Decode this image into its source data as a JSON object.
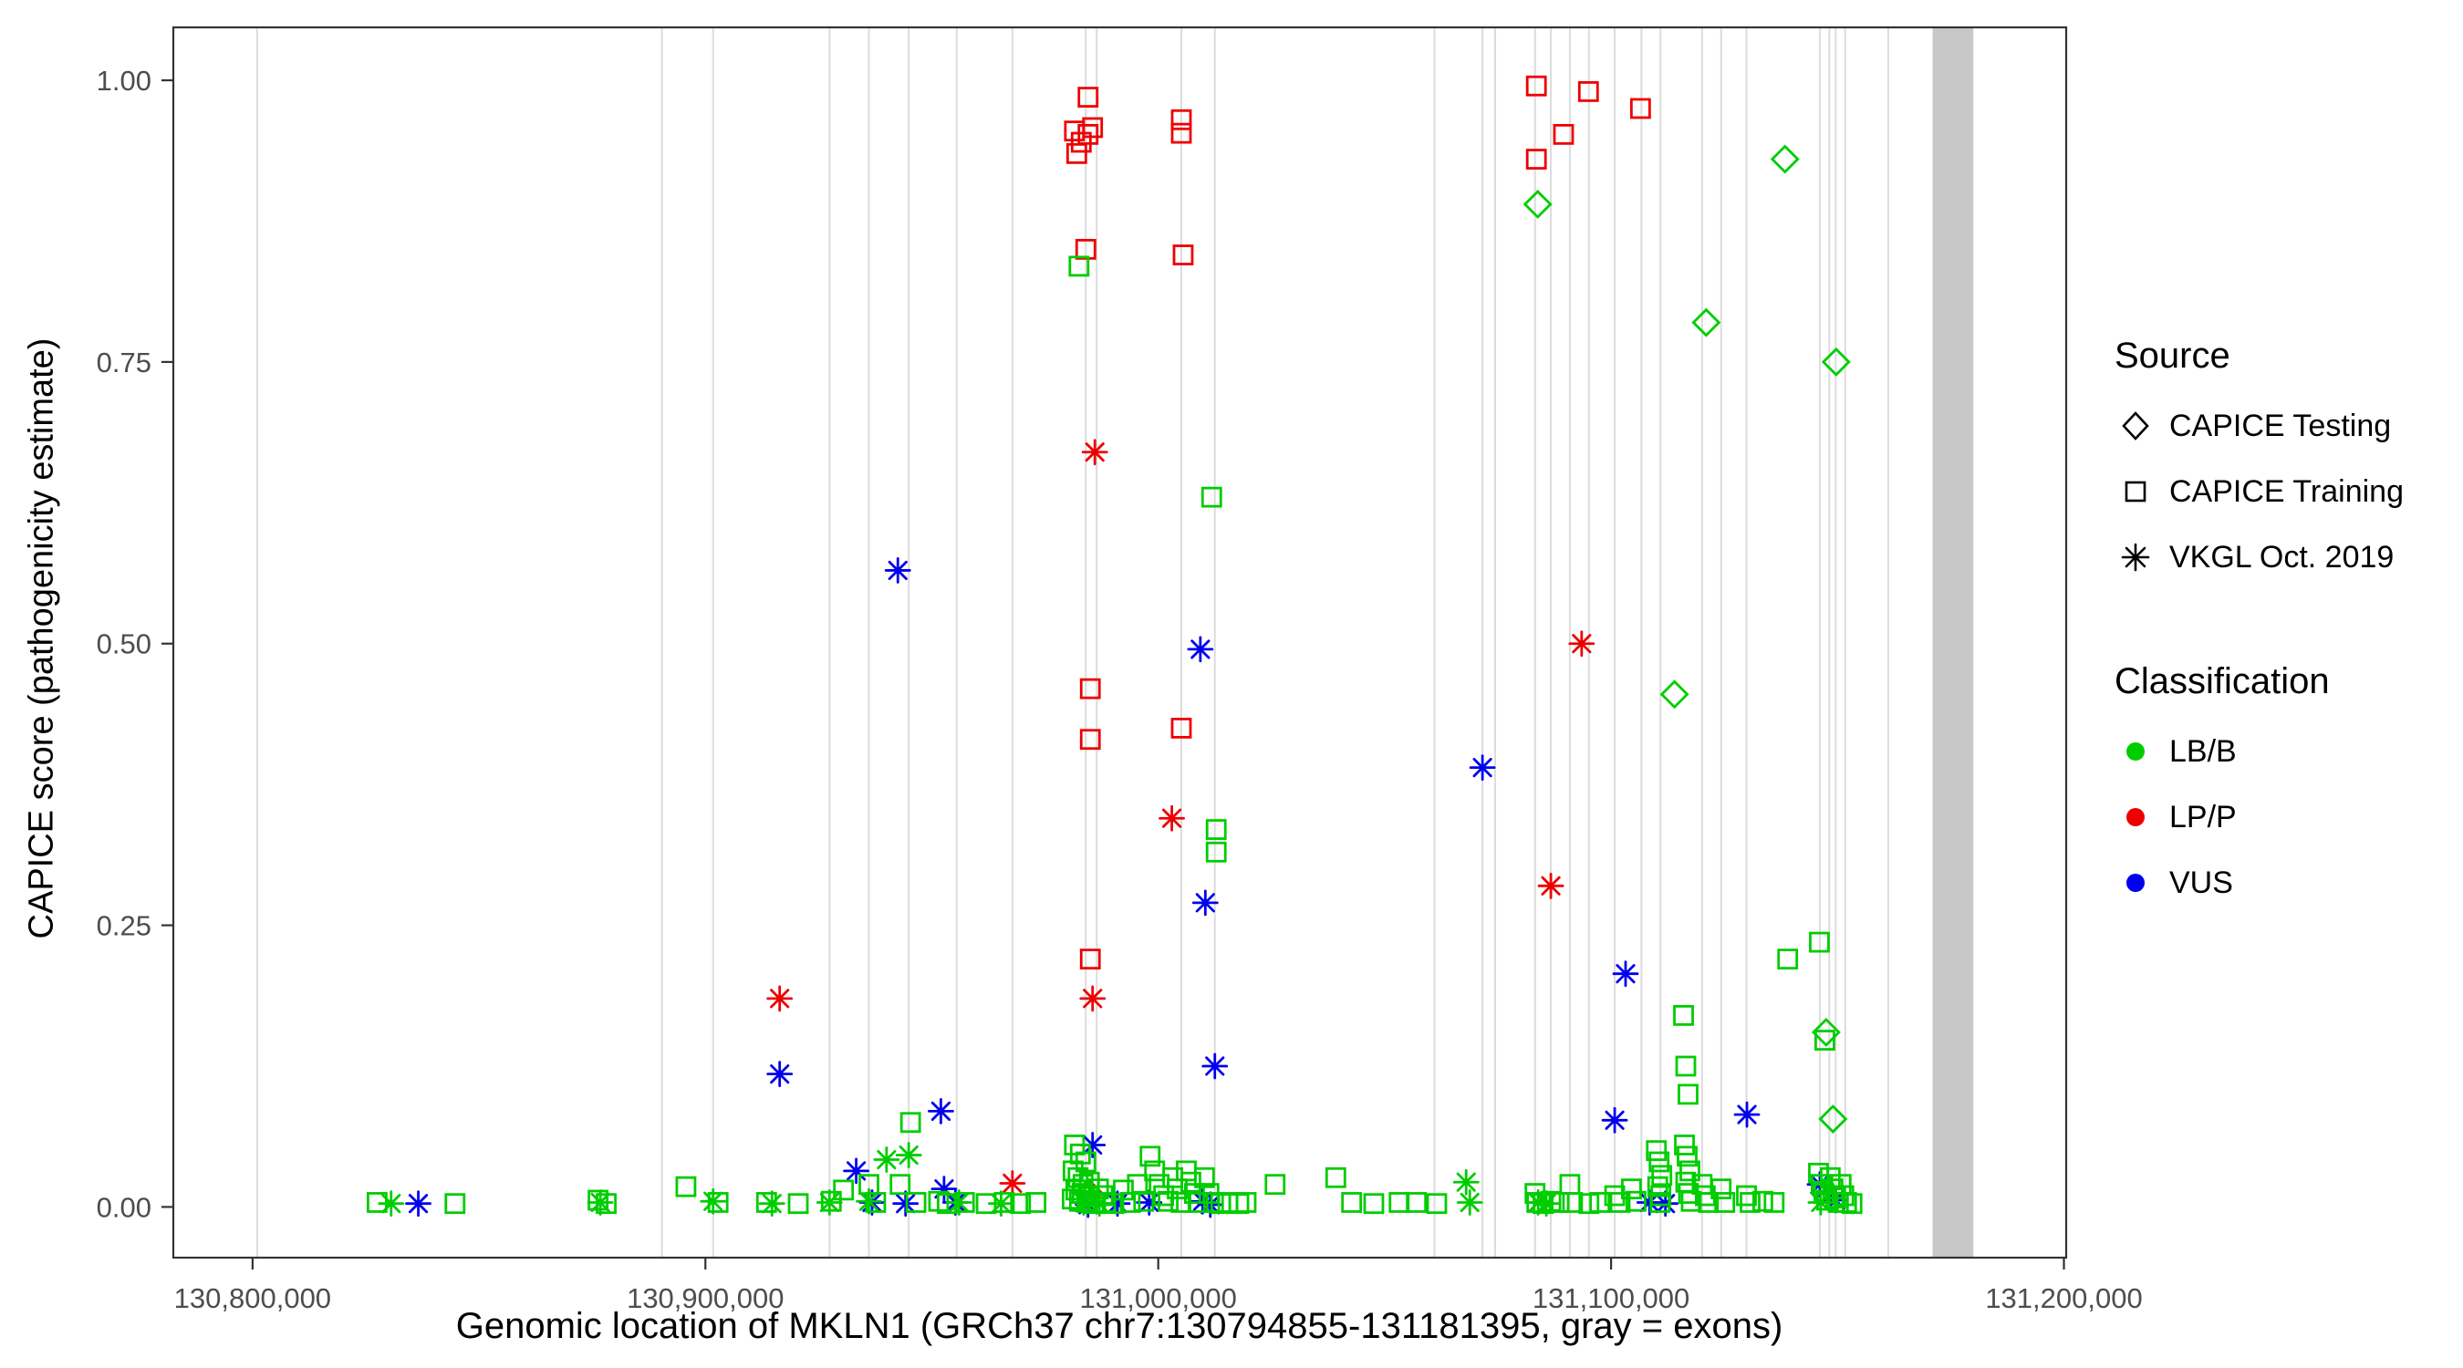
{
  "figure": {
    "y_axis_title": "CAPICE score (pathogenicity estimate)",
    "x_axis_title": "Genomic location of MKLN1 (GRCh37 chr7:130794855-131181395, gray = exons)"
  },
  "legend": {
    "source_title": "Source",
    "source_items": [
      {
        "label": "CAPICE Testing",
        "shape": "diamond"
      },
      {
        "label": "CAPICE Training",
        "shape": "square"
      },
      {
        "label": "VKGL Oct. 2019",
        "shape": "asterisk"
      }
    ],
    "classification_title": "Classification",
    "classification_items": [
      {
        "label": "LB/B",
        "color_key": "lbb"
      },
      {
        "label": "LP/P",
        "color_key": "lpp"
      },
      {
        "label": "VUS",
        "color_key": "vus"
      }
    ]
  },
  "chart_data": {
    "type": "scatter",
    "title": "",
    "xlabel": "Genomic location of MKLN1 (GRCh37 chr7:130794855-131181395, gray = exons)",
    "ylabel": "CAPICE score (pathogenicity estimate)",
    "xlim": [
      130782500,
      131200500
    ],
    "ylim": [
      -0.045,
      1.047
    ],
    "legend_position": "right",
    "grid": false,
    "x_ticks": [
      {
        "value": 130800000,
        "label": "130,800,000"
      },
      {
        "value": 130900000,
        "label": "130,900,000"
      },
      {
        "value": 131000000,
        "label": "131,000,000"
      },
      {
        "value": 131100000,
        "label": "131,100,000"
      },
      {
        "value": 131200000,
        "label": "131,200,000"
      }
    ],
    "y_ticks": [
      {
        "value": 0.0,
        "label": "0.00"
      },
      {
        "value": 0.25,
        "label": "0.25"
      },
      {
        "value": 0.5,
        "label": "0.50"
      },
      {
        "value": 0.75,
        "label": "0.75"
      },
      {
        "value": 1.0,
        "label": "1.00"
      }
    ],
    "colors": {
      "lbb": "#00CD00",
      "lpp": "#EE0000",
      "vus": "#0000EE"
    },
    "shapes": {
      "testing": "diamond",
      "training": "square",
      "vkgl": "asterisk"
    },
    "exon_color": "#DCDCDC",
    "exon_wide_color": "#C8C8C8",
    "exons": [
      130801000,
      130890400,
      130901700,
      130927400,
      130936100,
      130944900,
      130955500,
      130967800,
      130984000,
      130986400,
      131005100,
      131012500,
      131061000,
      131071600,
      131074400,
      131083200,
      131086700,
      131090900,
      131095100,
      131100800,
      131106700,
      131110900,
      131120100,
      131124300,
      131129900,
      131146100,
      131148200,
      131149600,
      131151700,
      131161200
    ],
    "exon_wide": [
      131171000,
      131180000
    ],
    "points": [
      [
        130984500,
        0.985,
        "training",
        "lpp"
      ],
      [
        130981500,
        0.955,
        "training",
        "lpp"
      ],
      [
        130983000,
        0.945,
        "training",
        "lpp"
      ],
      [
        130984500,
        0.952,
        "training",
        "lpp"
      ],
      [
        130982000,
        0.935,
        "training",
        "lpp"
      ],
      [
        130985500,
        0.958,
        "training",
        "lpp"
      ],
      [
        131005100,
        0.965,
        "training",
        "lpp"
      ],
      [
        131005100,
        0.953,
        "training",
        "lpp"
      ],
      [
        130984000,
        0.85,
        "training",
        "lpp"
      ],
      [
        131005500,
        0.845,
        "training",
        "lpp"
      ],
      [
        131083500,
        0.995,
        "training",
        "lpp"
      ],
      [
        131095000,
        0.99,
        "training",
        "lpp"
      ],
      [
        131083500,
        0.93,
        "training",
        "lpp"
      ],
      [
        131089500,
        0.952,
        "training",
        "lpp"
      ],
      [
        131106500,
        0.975,
        "training",
        "lpp"
      ],
      [
        130985000,
        0.46,
        "training",
        "lpp"
      ],
      [
        130985000,
        0.415,
        "training",
        "lpp"
      ],
      [
        131005100,
        0.425,
        "training",
        "lpp"
      ],
      [
        130985000,
        0.22,
        "training",
        "lpp"
      ],
      [
        130982500,
        0.835,
        "training",
        "lbb"
      ],
      [
        131011800,
        0.63,
        "training",
        "lbb"
      ],
      [
        131012800,
        0.335,
        "training",
        "lbb"
      ],
      [
        131012800,
        0.315,
        "training",
        "lbb"
      ],
      [
        130986000,
        0.67,
        "vkgl",
        "lpp"
      ],
      [
        131003000,
        0.345,
        "vkgl",
        "lpp"
      ],
      [
        130985500,
        0.185,
        "vkgl",
        "lpp"
      ],
      [
        130916400,
        0.185,
        "vkgl",
        "lpp"
      ],
      [
        131093500,
        0.5,
        "vkgl",
        "lpp"
      ],
      [
        131086700,
        0.285,
        "vkgl",
        "lpp"
      ],
      [
        130967800,
        0.021,
        "vkgl",
        "lpp"
      ],
      [
        130984800,
        0.012,
        "testing",
        "lpp"
      ],
      [
        130942500,
        0.565,
        "vkgl",
        "vus"
      ],
      [
        131009300,
        0.495,
        "vkgl",
        "vus"
      ],
      [
        131071600,
        0.39,
        "vkgl",
        "vus"
      ],
      [
        131010400,
        0.27,
        "vkgl",
        "vus"
      ],
      [
        130916400,
        0.118,
        "vkgl",
        "vus"
      ],
      [
        130952000,
        0.085,
        "vkgl",
        "vus"
      ],
      [
        131012500,
        0.125,
        "vkgl",
        "vus"
      ],
      [
        131103200,
        0.207,
        "vkgl",
        "vus"
      ],
      [
        131100800,
        0.077,
        "vkgl",
        "vus"
      ],
      [
        131130000,
        0.082,
        "vkgl",
        "vus"
      ],
      [
        130933300,
        0.032,
        "vkgl",
        "vus"
      ],
      [
        130985500,
        0.055,
        "vkgl",
        "vus"
      ],
      [
        130952700,
        0.016,
        "vkgl",
        "vus"
      ],
      [
        130836600,
        0.003,
        "vkgl",
        "vus"
      ],
      [
        130936800,
        0.004,
        "vkgl",
        "vus"
      ],
      [
        130944200,
        0.003,
        "vkgl",
        "vus"
      ],
      [
        130955200,
        0.004,
        "vkgl",
        "vus"
      ],
      [
        130984500,
        0.002,
        "vkgl",
        "vus"
      ],
      [
        130998000,
        0.004,
        "vkgl",
        "vus"
      ],
      [
        131009800,
        0.005,
        "vkgl",
        "vus"
      ],
      [
        131011500,
        0.002,
        "vkgl",
        "vus"
      ],
      [
        131108500,
        0.004,
        "vkgl",
        "vus"
      ],
      [
        131112000,
        0.003,
        "vkgl",
        "vus"
      ],
      [
        131146100,
        0.02,
        "vkgl",
        "vus"
      ],
      [
        131149600,
        0.006,
        "vkgl",
        "vus"
      ],
      [
        130991000,
        0.003,
        "vkgl",
        "vus"
      ],
      [
        131083800,
        0.89,
        "testing",
        "lbb"
      ],
      [
        131121000,
        0.785,
        "testing",
        "lbb"
      ],
      [
        131138400,
        0.93,
        "testing",
        "lbb"
      ],
      [
        131149700,
        0.75,
        "testing",
        "lbb"
      ],
      [
        131114000,
        0.455,
        "testing",
        "lbb"
      ],
      [
        131147500,
        0.155,
        "testing",
        "lbb"
      ],
      [
        131149000,
        0.078,
        "testing",
        "lbb"
      ],
      [
        130830600,
        0.003,
        "vkgl",
        "lbb"
      ],
      [
        130876800,
        0.004,
        "vkgl",
        "lbb"
      ],
      [
        130901700,
        0.005,
        "vkgl",
        "lbb"
      ],
      [
        130914700,
        0.003,
        "vkgl",
        "lbb"
      ],
      [
        130927400,
        0.004,
        "vkgl",
        "lbb"
      ],
      [
        130936100,
        0.005,
        "vkgl",
        "lbb"
      ],
      [
        130940000,
        0.042,
        "vkgl",
        "lbb"
      ],
      [
        130944900,
        0.046,
        "vkgl",
        "lbb"
      ],
      [
        130956000,
        0.004,
        "vkgl",
        "lbb"
      ],
      [
        130965300,
        0.003,
        "vkgl",
        "lbb"
      ],
      [
        131068000,
        0.022,
        "vkgl",
        "lbb"
      ],
      [
        131068800,
        0.004,
        "vkgl",
        "lbb"
      ],
      [
        131083900,
        0.004,
        "vkgl",
        "lbb"
      ],
      [
        131085700,
        0.003,
        "vkgl",
        "lbb"
      ],
      [
        131146300,
        0.004,
        "vkgl",
        "lbb"
      ],
      [
        130983500,
        0.004,
        "vkgl",
        "lbb"
      ],
      [
        130987000,
        0.003,
        "vkgl",
        "lbb"
      ],
      [
        130827500,
        0.004,
        "training",
        "lbb"
      ],
      [
        130844700,
        0.003,
        "training",
        "lbb"
      ],
      [
        130876300,
        0.006,
        "training",
        "lbb"
      ],
      [
        130878100,
        0.003,
        "training",
        "lbb"
      ],
      [
        130895700,
        0.018,
        "training",
        "lbb"
      ],
      [
        130902800,
        0.004,
        "training",
        "lbb"
      ],
      [
        130913500,
        0.004,
        "training",
        "lbb"
      ],
      [
        130920500,
        0.003,
        "training",
        "lbb"
      ],
      [
        130927800,
        0.005,
        "training",
        "lbb"
      ],
      [
        130930500,
        0.015,
        "training",
        "lbb"
      ],
      [
        130936100,
        0.02,
        "training",
        "lbb"
      ],
      [
        130937600,
        0.004,
        "training",
        "lbb"
      ],
      [
        130943000,
        0.02,
        "training",
        "lbb"
      ],
      [
        130945300,
        0.075,
        "training",
        "lbb"
      ],
      [
        130946500,
        0.004,
        "training",
        "lbb"
      ],
      [
        130951500,
        0.005,
        "training",
        "lbb"
      ],
      [
        130953400,
        0.003,
        "training",
        "lbb"
      ],
      [
        130957200,
        0.004,
        "training",
        "lbb"
      ],
      [
        130962000,
        0.003,
        "training",
        "lbb"
      ],
      [
        130966000,
        0.004,
        "training",
        "lbb"
      ],
      [
        130969600,
        0.003,
        "training",
        "lbb"
      ],
      [
        130973000,
        0.004,
        "training",
        "lbb"
      ],
      [
        130981500,
        0.055,
        "training",
        "lbb"
      ],
      [
        130982800,
        0.047,
        "training",
        "lbb"
      ],
      [
        130984000,
        0.04,
        "training",
        "lbb"
      ],
      [
        130981200,
        0.032,
        "training",
        "lbb"
      ],
      [
        130982300,
        0.026,
        "training",
        "lbb"
      ],
      [
        130983400,
        0.02,
        "training",
        "lbb"
      ],
      [
        130984800,
        0.022,
        "training",
        "lbb"
      ],
      [
        130981800,
        0.015,
        "training",
        "lbb"
      ],
      [
        130983200,
        0.012,
        "training",
        "lbb"
      ],
      [
        130984600,
        0.009,
        "training",
        "lbb"
      ],
      [
        130981000,
        0.007,
        "training",
        "lbb"
      ],
      [
        130982600,
        0.005,
        "training",
        "lbb"
      ],
      [
        130984200,
        0.004,
        "training",
        "lbb"
      ],
      [
        130985800,
        0.003,
        "training",
        "lbb"
      ],
      [
        130986800,
        0.016,
        "training",
        "lbb"
      ],
      [
        130987800,
        0.01,
        "training",
        "lbb"
      ],
      [
        130988400,
        0.004,
        "training",
        "lbb"
      ],
      [
        130990200,
        0.003,
        "training",
        "lbb"
      ],
      [
        130992300,
        0.015,
        "training",
        "lbb"
      ],
      [
        130993800,
        0.004,
        "training",
        "lbb"
      ],
      [
        130995400,
        0.02,
        "training",
        "lbb"
      ],
      [
        130996800,
        0.005,
        "training",
        "lbb"
      ],
      [
        130998200,
        0.045,
        "training",
        "lbb"
      ],
      [
        130999200,
        0.032,
        "training",
        "lbb"
      ],
      [
        131000200,
        0.02,
        "training",
        "lbb"
      ],
      [
        131001200,
        0.01,
        "training",
        "lbb"
      ],
      [
        131002200,
        0.005,
        "training",
        "lbb"
      ],
      [
        131003200,
        0.026,
        "training",
        "lbb"
      ],
      [
        131004200,
        0.016,
        "training",
        "lbb"
      ],
      [
        131005000,
        0.004,
        "training",
        "lbb"
      ],
      [
        131006200,
        0.032,
        "training",
        "lbb"
      ],
      [
        131007200,
        0.022,
        "training",
        "lbb"
      ],
      [
        131008000,
        0.012,
        "training",
        "lbb"
      ],
      [
        131008800,
        0.004,
        "training",
        "lbb"
      ],
      [
        131010200,
        0.026,
        "training",
        "lbb"
      ],
      [
        131011200,
        0.012,
        "training",
        "lbb"
      ],
      [
        131012200,
        0.004,
        "training",
        "lbb"
      ],
      [
        131013800,
        0.003,
        "training",
        "lbb"
      ],
      [
        131015400,
        0.004,
        "training",
        "lbb"
      ],
      [
        131017800,
        0.003,
        "training",
        "lbb"
      ],
      [
        131019400,
        0.004,
        "training",
        "lbb"
      ],
      [
        131025800,
        0.02,
        "training",
        "lbb"
      ],
      [
        131039200,
        0.026,
        "training",
        "lbb"
      ],
      [
        131042700,
        0.004,
        "training",
        "lbb"
      ],
      [
        131047600,
        0.003,
        "training",
        "lbb"
      ],
      [
        131053200,
        0.004,
        "training",
        "lbb"
      ],
      [
        131057000,
        0.004,
        "training",
        "lbb"
      ],
      [
        131061500,
        0.003,
        "training",
        "lbb"
      ],
      [
        131083200,
        0.012,
        "training",
        "lbb"
      ],
      [
        131083600,
        0.004,
        "training",
        "lbb"
      ],
      [
        131085000,
        0.003,
        "training",
        "lbb"
      ],
      [
        131086700,
        0.005,
        "training",
        "lbb"
      ],
      [
        131088500,
        0.004,
        "training",
        "lbb"
      ],
      [
        131090900,
        0.02,
        "training",
        "lbb"
      ],
      [
        131091500,
        0.004,
        "training",
        "lbb"
      ],
      [
        131095100,
        0.003,
        "training",
        "lbb"
      ],
      [
        131097500,
        0.004,
        "training",
        "lbb"
      ],
      [
        131100800,
        0.01,
        "training",
        "lbb"
      ],
      [
        131102000,
        0.004,
        "training",
        "lbb"
      ],
      [
        131104500,
        0.016,
        "training",
        "lbb"
      ],
      [
        131105500,
        0.005,
        "training",
        "lbb"
      ],
      [
        131110000,
        0.05,
        "training",
        "lbb"
      ],
      [
        131110600,
        0.04,
        "training",
        "lbb"
      ],
      [
        131111200,
        0.028,
        "training",
        "lbb"
      ],
      [
        131110300,
        0.018,
        "training",
        "lbb"
      ],
      [
        131111000,
        0.01,
        "training",
        "lbb"
      ],
      [
        131110800,
        0.004,
        "training",
        "lbb"
      ],
      [
        131116200,
        0.055,
        "training",
        "lbb"
      ],
      [
        131116800,
        0.045,
        "training",
        "lbb"
      ],
      [
        131117400,
        0.032,
        "training",
        "lbb"
      ],
      [
        131116500,
        0.022,
        "training",
        "lbb"
      ],
      [
        131117100,
        0.012,
        "training",
        "lbb"
      ],
      [
        131117700,
        0.005,
        "training",
        "lbb"
      ],
      [
        131116000,
        0.17,
        "training",
        "lbb"
      ],
      [
        131116500,
        0.125,
        "training",
        "lbb"
      ],
      [
        131117000,
        0.1,
        "training",
        "lbb"
      ],
      [
        131120100,
        0.02,
        "training",
        "lbb"
      ],
      [
        131120800,
        0.01,
        "training",
        "lbb"
      ],
      [
        131121500,
        0.004,
        "training",
        "lbb"
      ],
      [
        131124300,
        0.016,
        "training",
        "lbb"
      ],
      [
        131125100,
        0.004,
        "training",
        "lbb"
      ],
      [
        131129900,
        0.01,
        "training",
        "lbb"
      ],
      [
        131130700,
        0.004,
        "training",
        "lbb"
      ],
      [
        131133500,
        0.005,
        "training",
        "lbb"
      ],
      [
        131136000,
        0.004,
        "training",
        "lbb"
      ],
      [
        131139000,
        0.22,
        "training",
        "lbb"
      ],
      [
        131146000,
        0.235,
        "training",
        "lbb"
      ],
      [
        131147200,
        0.148,
        "training",
        "lbb"
      ],
      [
        131145800,
        0.03,
        "training",
        "lbb"
      ],
      [
        131146400,
        0.02,
        "training",
        "lbb"
      ],
      [
        131147000,
        0.012,
        "training",
        "lbb"
      ],
      [
        131147600,
        0.006,
        "training",
        "lbb"
      ],
      [
        131148400,
        0.026,
        "training",
        "lbb"
      ],
      [
        131149000,
        0.016,
        "training",
        "lbb"
      ],
      [
        131149600,
        0.008,
        "training",
        "lbb"
      ],
      [
        131150200,
        0.004,
        "training",
        "lbb"
      ],
      [
        131150800,
        0.02,
        "training",
        "lbb"
      ],
      [
        131151400,
        0.01,
        "training",
        "lbb"
      ],
      [
        131152000,
        0.004,
        "training",
        "lbb"
      ],
      [
        131153200,
        0.003,
        "training",
        "lbb"
      ]
    ]
  }
}
